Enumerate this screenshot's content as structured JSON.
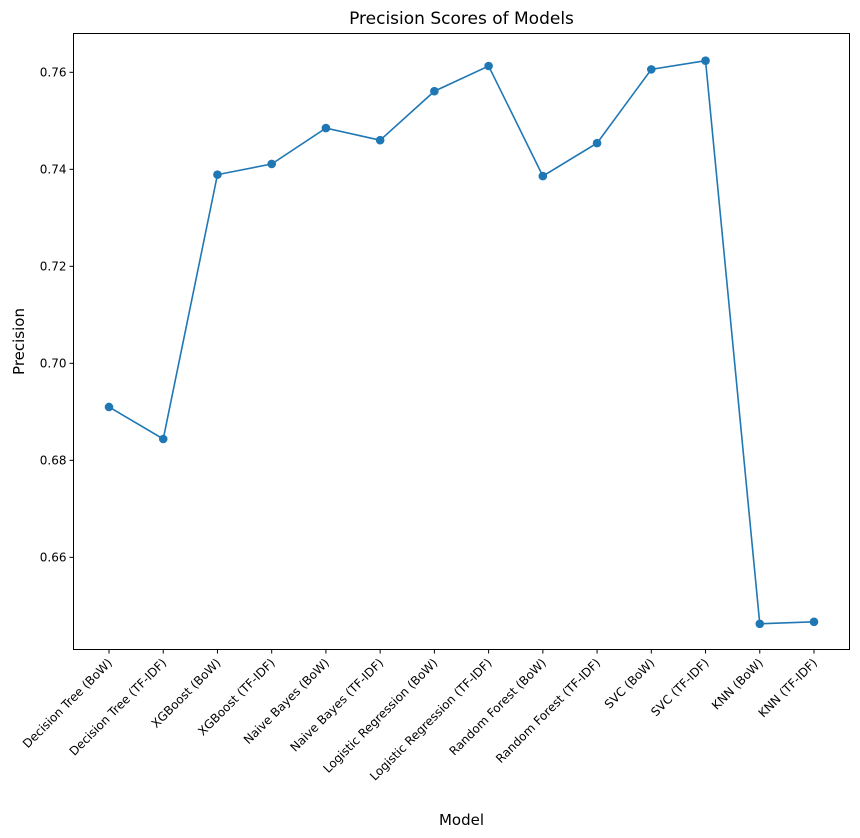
{
  "chart_data": {
    "type": "line",
    "title": "Precision Scores of Models",
    "xlabel": "Model",
    "ylabel": "Precision",
    "categories": [
      "Decision Tree (BoW)",
      "Decision Tree (TF-IDF)",
      "XGBoost (BoW)",
      "XGBoost (TF-IDF)",
      "Naive Bayes (BoW)",
      "Naive Bayes (TF-IDF)",
      "Logistic Regression (BoW)",
      "Logistic Regression (TF-IDF)",
      "Random Forest (BoW)",
      "Random Forest (TF-IDF)",
      "SVC (BoW)",
      "SVC (TF-IDF)",
      "KNN (BoW)",
      "KNN (TF-IDF)"
    ],
    "values": [
      0.691,
      0.6844,
      0.7389,
      0.7411,
      0.7485,
      0.746,
      0.7561,
      0.7613,
      0.7386,
      0.7454,
      0.7606,
      0.7624,
      0.6463,
      0.6467
    ],
    "ylim": [
      0.641,
      0.768
    ],
    "yticks": [
      "0.66",
      "0.68",
      "0.70",
      "0.72",
      "0.74",
      "0.76"
    ],
    "ytick_values": [
      0.66,
      0.68,
      0.7,
      0.72,
      0.74,
      0.76
    ],
    "grid": false,
    "marker": "circle",
    "color": "#1f77b4"
  }
}
